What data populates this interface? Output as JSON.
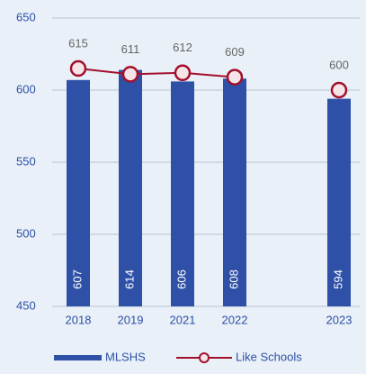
{
  "chart_data": {
    "type": "bar",
    "categories": [
      "2018",
      "2019",
      "2021",
      "2022",
      null,
      "2023"
    ],
    "series": [
      {
        "name": "MLSHS",
        "type": "bar",
        "color": "#2e50a6",
        "values": [
          607,
          614,
          606,
          608,
          null,
          594
        ]
      },
      {
        "name": "Like Schools",
        "type": "line",
        "color": "#a3102c",
        "values": [
          615,
          611,
          612,
          609,
          null,
          600
        ]
      }
    ],
    "ylim": [
      450,
      650
    ],
    "yticks": [
      450,
      500,
      550,
      600,
      650
    ],
    "grid": true,
    "legend": "bottom"
  }
}
